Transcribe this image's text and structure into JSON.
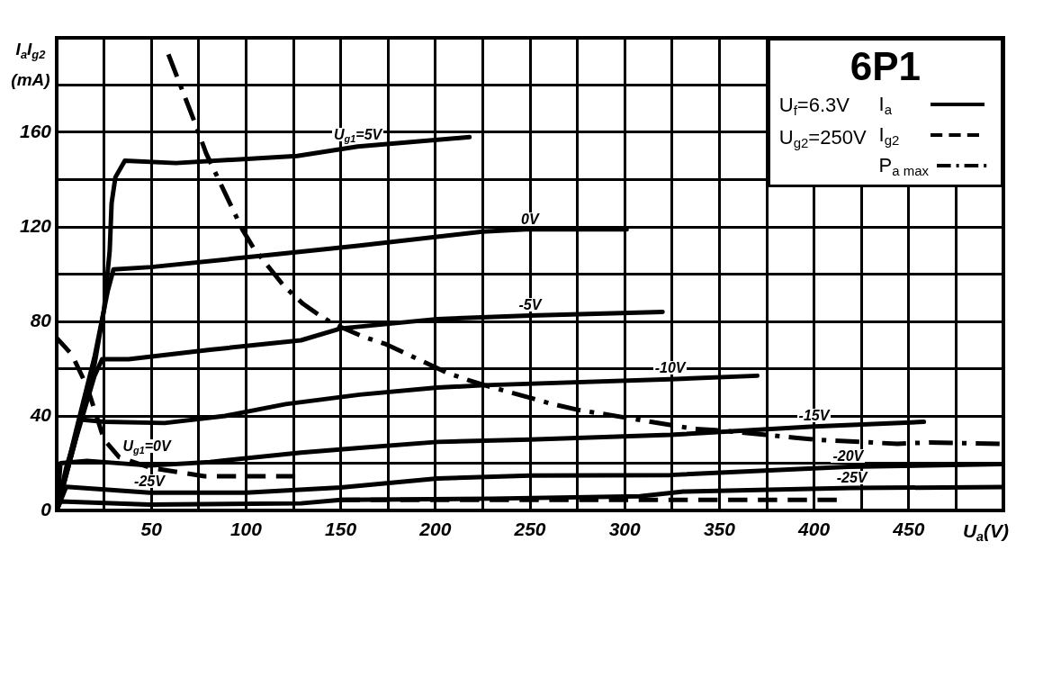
{
  "chart_data": {
    "type": "line",
    "title": "6P1",
    "xlabel": "U$_{a}$(V)",
    "ylabel": "I$_{a}$I$_{g2}$ (mA)",
    "annotations": [
      "U$_{f}$=6.3V",
      "U$_{g2}$=250V",
      {
        "text": "U$_{g1}$=5V",
        "x": 159,
        "y": 154
      },
      {
        "text": "0V",
        "x": 250,
        "y": 119
      },
      {
        "text": "-5V",
        "x": 250,
        "y": 82.5
      },
      {
        "text": "-10V",
        "x": 324,
        "y": 55.5
      },
      {
        "text": "-15V",
        "x": 400,
        "y": 35.5
      },
      {
        "text": "-20V",
        "x": 418,
        "y": 18.5
      },
      {
        "text": "-25V",
        "x": 420,
        "y": 9.5
      },
      {
        "text": "U$_{g1}$=0V",
        "x": 33,
        "y": 22.5
      },
      {
        "text": "-25V",
        "x": 49,
        "y": 7.5
      }
    ],
    "xlim": [
      0,
      500
    ],
    "ylim": [
      0,
      200
    ],
    "xticks": [
      {
        "value": 0,
        "label": null
      },
      {
        "value": 25,
        "label": null
      },
      50,
      {
        "value": 75,
        "label": null
      },
      100,
      {
        "value": 125,
        "label": null
      },
      150,
      {
        "value": 175,
        "label": null
      },
      200,
      {
        "value": 225,
        "label": null
      },
      250,
      {
        "value": 275,
        "label": null
      },
      300,
      {
        "value": 325,
        "label": null
      },
      350,
      {
        "value": 375,
        "label": null
      },
      400,
      {
        "value": 425,
        "label": null
      },
      450,
      {
        "value": 475,
        "label": null
      }
    ],
    "yticks": [
      0,
      {
        "value": 20,
        "label": null
      },
      40,
      {
        "value": 60,
        "label": null
      },
      80,
      {
        "value": 100,
        "label": null
      },
      120,
      {
        "value": 140,
        "label": null
      },
      160,
      {
        "value": 180,
        "label": null
      }
    ],
    "grid": true,
    "legend": "top right",
    "series": [
      {
        "name": "I$_{a}$",
        "color": "#000000",
        "line_style": "solid",
        "x": [
          0,
          10,
          20,
          25,
          28,
          29,
          31,
          36,
          63,
          127,
          159,
          218
        ],
        "values": [
          0,
          30,
          62,
          85,
          110,
          130,
          141,
          148,
          147,
          150,
          154,
          158
        ]
      },
      {
        "color": "#000000",
        "line_style": "solid",
        "x": [
          0,
          10,
          20,
          27,
          30,
          50,
          111,
          159,
          225,
          250,
          301
        ],
        "values": [
          0,
          33,
          65,
          93,
          102,
          103,
          108,
          112,
          118,
          119,
          119
        ]
      },
      {
        "color": "#000000",
        "line_style": "solid",
        "x": [
          0,
          10,
          20,
          24,
          38,
          81,
          129,
          150,
          201,
          250,
          320
        ],
        "values": [
          0,
          30,
          57,
          64,
          64,
          68,
          72,
          77,
          81,
          82.5,
          84
        ]
      },
      {
        "color": "#000000",
        "line_style": "solid",
        "x": [
          0,
          5,
          12.7,
          25,
          57,
          89,
          121,
          160,
          201,
          226,
          324,
          370
        ],
        "values": [
          0,
          18,
          38.5,
          37.5,
          37,
          40,
          45,
          49,
          52,
          53,
          55.5,
          57
        ]
      },
      {
        "color": "#000000",
        "line_style": "solid",
        "x": [
          0,
          2,
          16,
          49,
          81,
          129,
          160,
          201,
          250,
          324,
          400,
          458
        ],
        "values": [
          0,
          20,
          21,
          19,
          20.5,
          24.5,
          26.5,
          29,
          30,
          32,
          35.5,
          37.5
        ]
      },
      {
        "color": "#000000",
        "line_style": "solid",
        "x": [
          0,
          5,
          49,
          100,
          150,
          201,
          250,
          324,
          418,
          499
        ],
        "values": [
          0,
          10,
          7.5,
          7.5,
          9.7,
          13.5,
          14.8,
          15,
          18.5,
          19.6
        ]
      },
      {
        "color": "#000000",
        "line_style": "solid",
        "x": [
          0,
          2,
          49,
          129,
          150,
          230,
          308,
          331,
          420,
          500
        ],
        "values": [
          0,
          3.8,
          2.5,
          3,
          4.5,
          5,
          6,
          8,
          9.5,
          9.9
        ]
      },
      {
        "name": "I$_{g2}$",
        "color": "#000000",
        "line_style": "dashed",
        "x": [
          0,
          8,
          16,
          25,
          33,
          50,
          78,
          126
        ],
        "values": [
          73,
          66,
          52.5,
          30,
          22.5,
          18,
          14.5,
          14.5
        ]
      },
      {
        "color": "#000000",
        "line_style": "dashed",
        "x": [
          150,
          230,
          308,
          331,
          412
        ],
        "values": [
          4.5,
          4.5,
          4.5,
          4.5,
          4.5
        ]
      },
      {
        "name": "P$_{a max}$",
        "color": "#000000",
        "line_style": "dashdot",
        "x": [
          59,
          73,
          79,
          98,
          104,
          120,
          130,
          138,
          146,
          162,
          174,
          207,
          218,
          226,
          261,
          275,
          337,
          348,
          390,
          402,
          444,
          461,
          498
        ],
        "values": [
          193,
          164,
          151,
          119,
          111,
          95,
          87.5,
          83,
          79,
          73.5,
          70.3,
          58,
          55,
          53,
          45.2,
          42.6,
          34.5,
          34,
          30.8,
          29.9,
          28.2,
          28.8,
          28.2
        ]
      }
    ]
  }
}
